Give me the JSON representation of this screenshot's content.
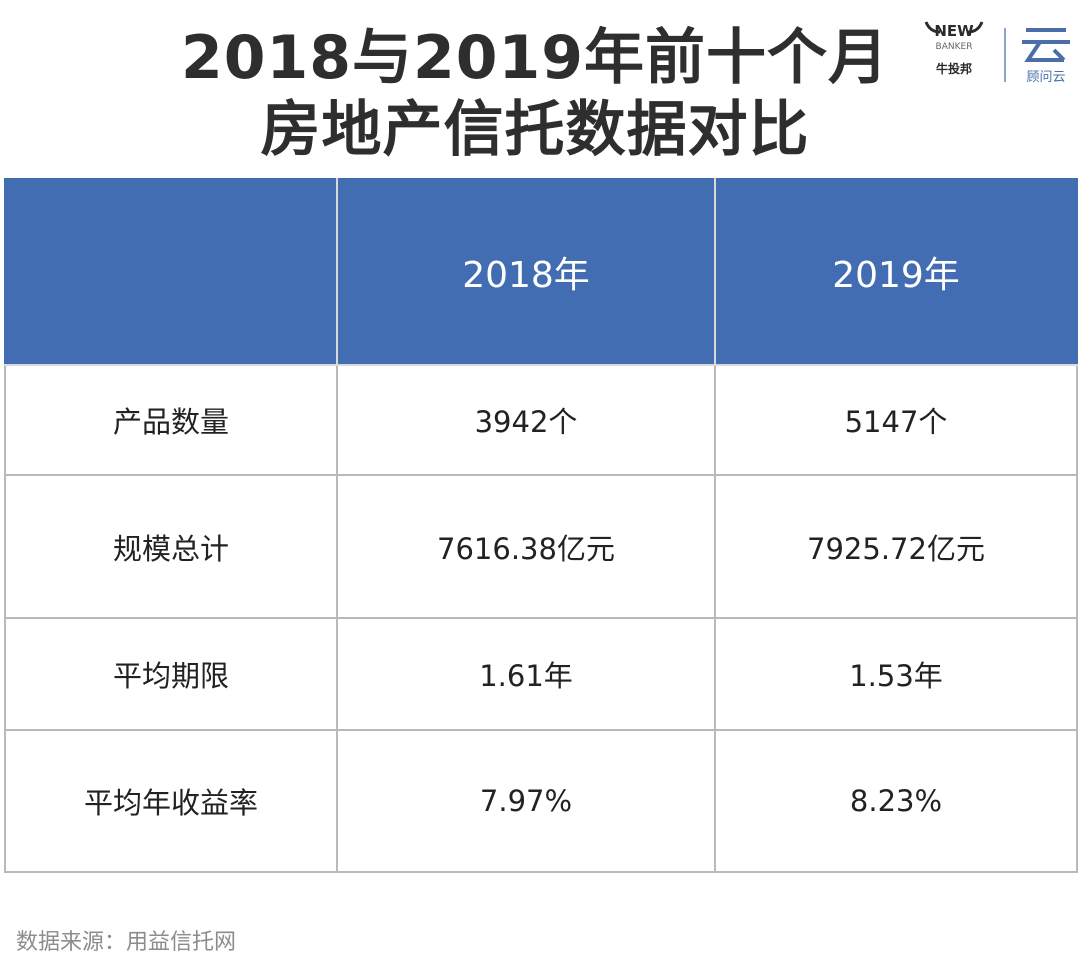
{
  "title": {
    "line1": "2018与2019年前十个月",
    "line2": "房地产信托数据对比"
  },
  "logos": {
    "newbanker_text": "NEW",
    "newbanker_sub": "BANKER",
    "newbanker_cn": "牛投邦",
    "guwen_cn": "顾问云",
    "icon_names": [
      "newbanker-logo-icon",
      "guwenyun-logo-icon"
    ]
  },
  "colors": {
    "header_bg": "#426db3",
    "header_text": "#ffffff",
    "title_text": "#2e2e2e",
    "grid": "#b9b9b9"
  },
  "chart_data": {
    "type": "table",
    "title": "2018与2019年前十个月 房地产信托数据对比",
    "columns": [
      "",
      "2018年",
      "2019年"
    ],
    "rows": [
      [
        "产品数量",
        "3942个",
        "5147个"
      ],
      [
        "规模总计",
        "7616.38亿元",
        "7925.72亿元"
      ],
      [
        "平均期限",
        "1.61年",
        "1.53年"
      ],
      [
        "平均年收益率",
        "7.97%",
        "8.23%"
      ]
    ]
  },
  "footer": {
    "source": "数据来源：用益信托网"
  }
}
